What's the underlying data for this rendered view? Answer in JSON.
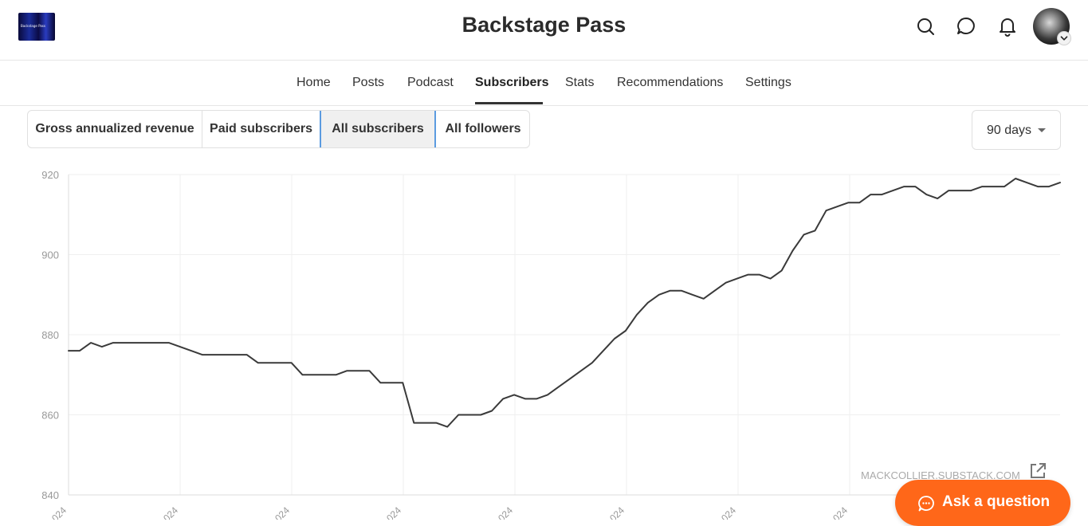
{
  "header": {
    "logo_text": "Backstage Pass",
    "title": "Backstage Pass",
    "icons": [
      "search-icon",
      "chat-icon",
      "bell-icon"
    ]
  },
  "nav": {
    "items": [
      {
        "label": "Home"
      },
      {
        "label": "Posts"
      },
      {
        "label": "Podcast"
      },
      {
        "label": "Subscribers",
        "active": true
      },
      {
        "label": "Stats"
      },
      {
        "label": "Recommendations"
      },
      {
        "label": "Settings"
      }
    ]
  },
  "tabs": {
    "items": [
      {
        "label": "Gross annualized revenue"
      },
      {
        "label": "Paid subscribers"
      },
      {
        "label": "All subscribers",
        "selected": true
      },
      {
        "label": "All followers"
      }
    ]
  },
  "period": {
    "label": "90 days"
  },
  "chart_data": {
    "type": "line",
    "title": "",
    "xlabel": "",
    "ylabel": "",
    "ylim": [
      840,
      920
    ],
    "y_ticks": [
      840,
      860,
      880,
      900,
      920
    ],
    "x_tick_labels": [
      "024",
      "024",
      "024",
      "024",
      "024",
      "024",
      "024",
      "024"
    ],
    "grid": true,
    "line_color": "#3a3a3a",
    "series": [
      {
        "values": [
          876,
          876,
          878,
          877,
          878,
          878,
          878,
          878,
          878,
          878,
          877,
          876,
          875,
          875,
          875,
          875,
          875,
          873,
          873,
          873,
          873,
          870,
          870,
          870,
          870,
          871,
          871,
          871,
          868,
          868,
          868,
          858,
          858,
          858,
          857,
          860,
          860,
          860,
          861,
          864,
          865,
          864,
          864,
          865,
          867,
          869,
          871,
          873,
          876,
          879,
          881,
          885,
          888,
          890,
          891,
          891,
          890,
          889,
          891,
          893,
          894,
          895,
          895,
          894,
          896,
          901,
          905,
          906,
          911,
          912,
          913,
          913,
          915,
          915,
          916,
          917,
          917,
          915,
          914,
          916,
          916,
          916,
          917,
          917,
          917,
          919,
          918,
          917,
          917,
          918
        ]
      }
    ]
  },
  "watermark": {
    "text": "MACKCOLLIER.SUBSTACK.COM"
  },
  "ask_button": {
    "label": "Ask a question"
  },
  "colors": {
    "accent": "#ff6719",
    "tab_selected_bg": "#f0f0f0",
    "focus_outline": "#5b9be0"
  }
}
